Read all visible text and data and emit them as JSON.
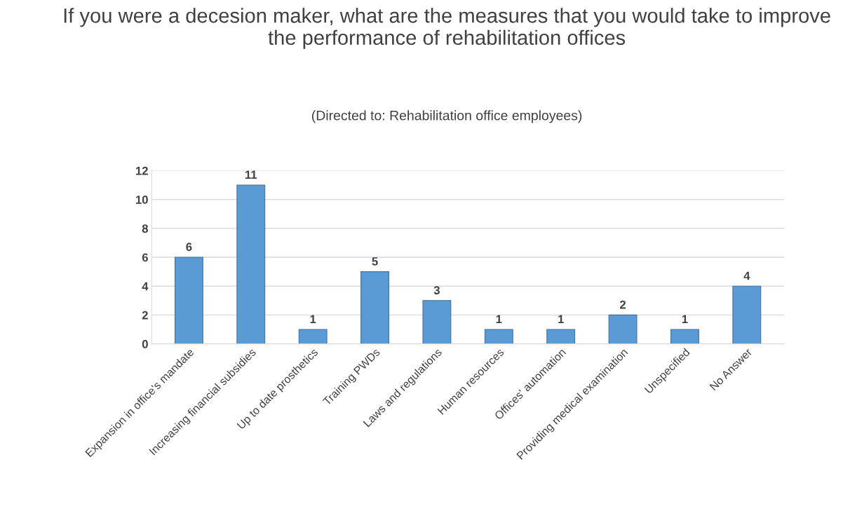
{
  "chart_data": {
    "type": "bar",
    "title": "If you were a decesion maker, what are the measures that you would take to improve the performance of rehabilitation offices",
    "subtitle": "(Directed to: Rehabilitation office employees)",
    "categories": [
      "Expansion in office's mandate",
      "Increasing financial subsidies",
      "Up to date prosthetics",
      "Training PWDs",
      "Laws and regulations",
      "Human resources",
      "Offices' automation",
      "Providing medical examination",
      "Unspecified",
      "No Answer"
    ],
    "values": [
      6,
      11,
      1,
      5,
      3,
      1,
      1,
      2,
      1,
      4
    ],
    "color": "#5b9bd5",
    "ylim": [
      0,
      12
    ],
    "yticks": [
      0,
      2,
      4,
      6,
      8,
      10,
      12
    ],
    "grid": "y",
    "data_labels": true
  }
}
